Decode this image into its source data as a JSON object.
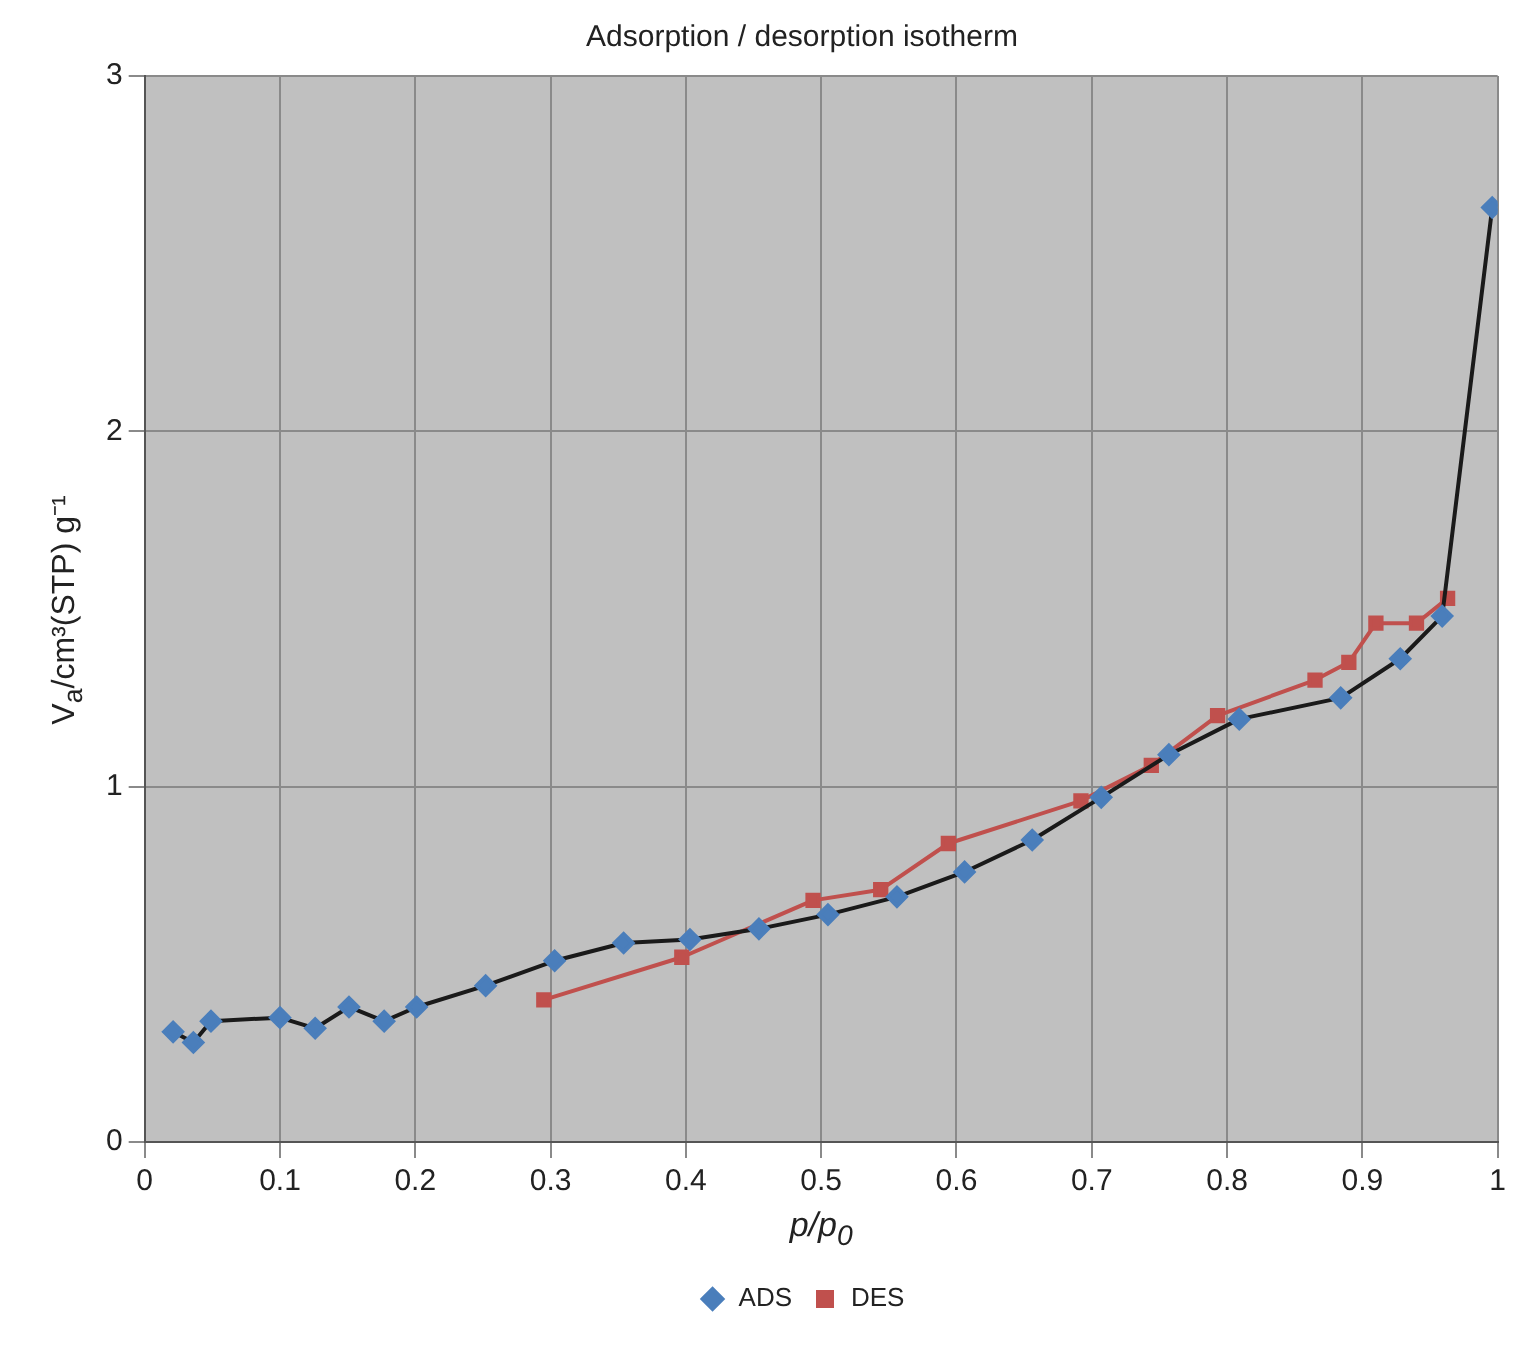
{
  "chart_data": {
    "type": "line",
    "title": "Adsorption / desorption isotherm",
    "xlabel": "p/p$_{0}$",
    "ylabel": "V$_{a}$/cm³(STP) g⁻¹",
    "series": [
      {
        "name": "ADS",
        "color": "#4a7ebb",
        "marker": "diamond",
        "x": [
          0.021,
          0.036,
          0.049,
          0.1,
          0.126,
          0.151,
          0.177,
          0.201,
          0.252,
          0.303,
          0.354,
          0.403,
          0.454,
          0.505,
          0.556,
          0.606,
          0.656,
          0.707,
          0.757,
          0.809,
          0.884,
          0.928,
          0.959,
          0.996
        ],
        "values": [
          0.31,
          0.28,
          0.34,
          0.35,
          0.32,
          0.38,
          0.34,
          0.38,
          0.44,
          0.51,
          0.56,
          0.57,
          0.6,
          0.64,
          0.69,
          0.76,
          0.85,
          0.97,
          1.09,
          1.19,
          1.25,
          1.36,
          1.48,
          2.63
        ]
      },
      {
        "name": "DES",
        "color": "#c0504d",
        "marker": "square",
        "x": [
          0.295,
          0.397,
          0.494,
          0.544,
          0.594,
          0.692,
          0.744,
          0.793,
          0.865,
          0.89,
          0.91,
          0.94,
          0.963
        ],
        "values": [
          0.4,
          0.52,
          0.68,
          0.71,
          0.84,
          0.96,
          1.06,
          1.2,
          1.3,
          1.35,
          1.46,
          1.46,
          1.53
        ]
      }
    ],
    "xlim": [
      0,
      1
    ],
    "xticks": [
      0,
      0.1,
      0.2,
      0.3,
      0.4,
      0.5,
      0.6,
      0.7,
      0.8,
      0.9,
      1
    ],
    "ylim": [
      0,
      3
    ],
    "yticks": [
      0,
      1,
      2,
      3
    ],
    "grid": true,
    "legend": "bottom",
    "line_style": "solid"
  }
}
